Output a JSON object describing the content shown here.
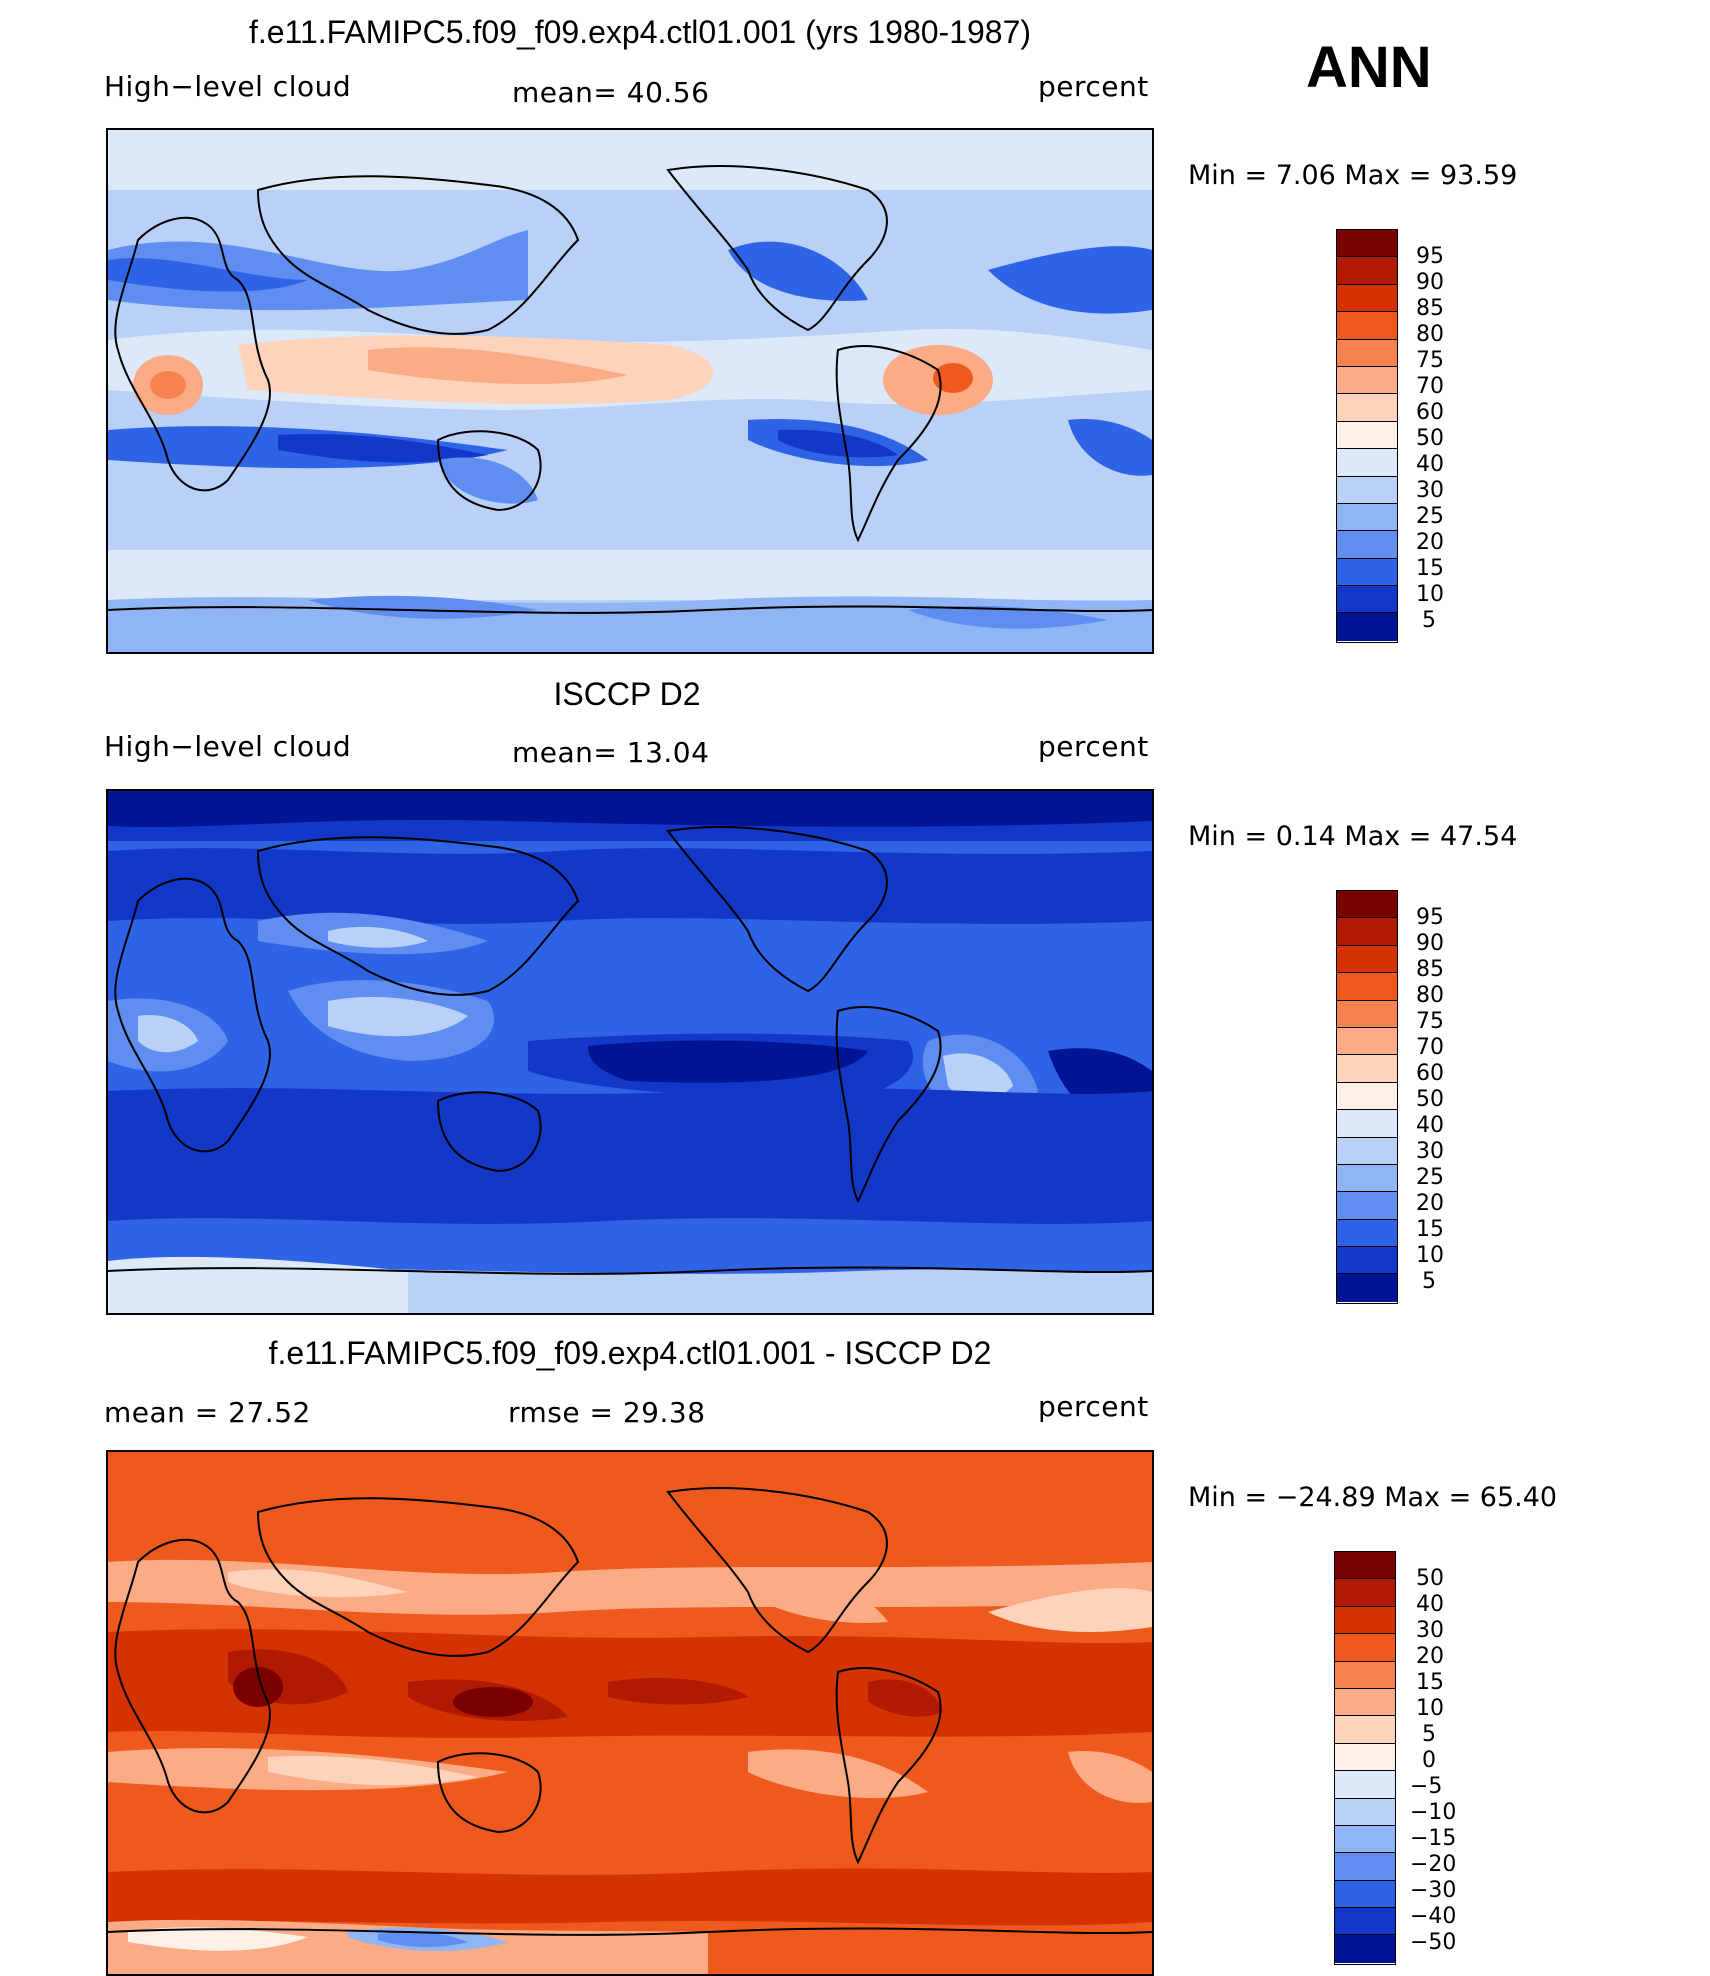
{
  "season": "ANN",
  "panels": [
    {
      "title": "f.e11.FAMIPC5.f09_f09.exp4.ctl01.001 (yrs 1980-1987)",
      "left_label": "High−level cloud",
      "mid_label": "mean=   40.56",
      "right_label": "percent",
      "minmax": "Min =    7.06 Max =    93.59",
      "colorbar_levels": [
        "95",
        "90",
        "85",
        "80",
        "75",
        "70",
        "60",
        "50",
        "40",
        "30",
        "25",
        "20",
        "15",
        "10",
        "5"
      ]
    },
    {
      "title": "ISCCP D2",
      "left_label": "High−level cloud",
      "mid_label": "mean=   13.04",
      "right_label": "percent",
      "minmax": "Min =    0.14 Max =    47.54",
      "colorbar_levels": [
        "95",
        "90",
        "85",
        "80",
        "75",
        "70",
        "60",
        "50",
        "40",
        "30",
        "25",
        "20",
        "15",
        "10",
        "5"
      ]
    },
    {
      "title": "f.e11.FAMIPC5.f09_f09.exp4.ctl01.001 - ISCCP D2",
      "left_label": "mean =    27.52",
      "mid_label": "rmse =    29.38",
      "right_label": "percent",
      "minmax": "Min = −24.89 Max =    65.40",
      "colorbar_levels": [
        "50",
        "40",
        "30",
        "20",
        "15",
        "10",
        "5",
        "0",
        "−5",
        "−10",
        "−15",
        "−20",
        "−30",
        "−40",
        "−50"
      ]
    }
  ],
  "chart_data": [
    {
      "type": "heatmap",
      "title": "f.e11.FAMIPC5.f09_f09.exp4.ctl01.001 (yrs 1980-1987)",
      "variable": "High−level cloud",
      "units": "percent",
      "mean": 40.56,
      "min": 7.06,
      "max": 93.59,
      "contour_levels": [
        5,
        10,
        15,
        20,
        25,
        30,
        40,
        50,
        60,
        70,
        75,
        80,
        85,
        90,
        95
      ]
    },
    {
      "type": "heatmap",
      "title": "ISCCP D2",
      "variable": "High−level cloud",
      "units": "percent",
      "mean": 13.04,
      "min": 0.14,
      "max": 47.54,
      "contour_levels": [
        5,
        10,
        15,
        20,
        25,
        30,
        40,
        50,
        60,
        70,
        75,
        80,
        85,
        90,
        95
      ]
    },
    {
      "type": "heatmap",
      "title": "f.e11.FAMIPC5.f09_f09.exp4.ctl01.001 - ISCCP D2",
      "units": "percent",
      "mean": 27.52,
      "rmse": 29.38,
      "min": -24.89,
      "max": 65.4,
      "contour_levels": [
        -50,
        -40,
        -30,
        -20,
        -15,
        -10,
        -5,
        0,
        5,
        10,
        15,
        20,
        30,
        40,
        50
      ]
    }
  ],
  "colors": {
    "colorbar": [
      "#7a0000",
      "#b01a00",
      "#d43200",
      "#ee5a1e",
      "#f6834e",
      "#fbab85",
      "#fdd3bb",
      "#fdf0e6",
      "#dde8f8",
      "#b9d1f7",
      "#8fb5f5",
      "#5f8ef0",
      "#2f63e6",
      "#1338c8",
      "#001494"
    ]
  }
}
